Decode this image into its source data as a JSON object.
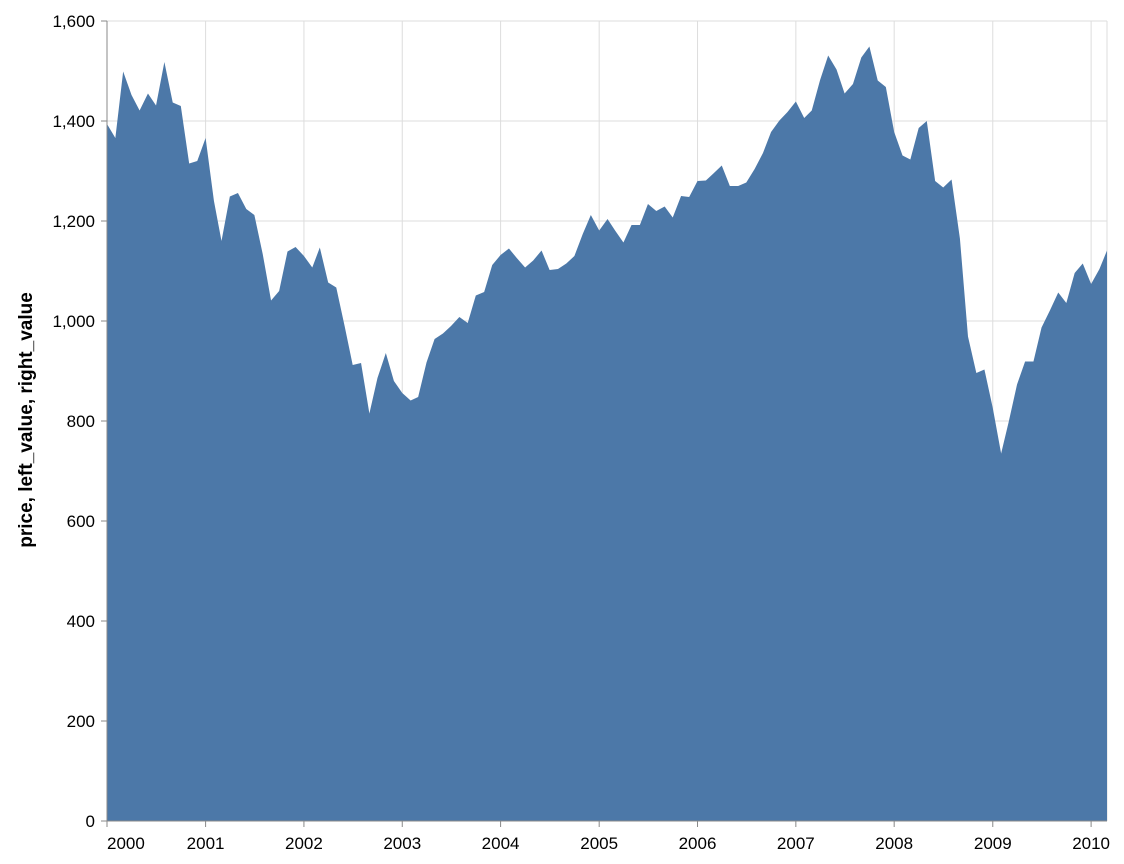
{
  "chart_data": {
    "type": "area",
    "ylabel": "price, left_value, right_value",
    "xlabel": "",
    "ylim": [
      0,
      1600
    ],
    "xlim": [
      "2000-01-01",
      "2010-03-01"
    ],
    "grid": true,
    "y_ticks": [
      "0",
      "200",
      "400",
      "600",
      "800",
      "1,000",
      "1,200",
      "1,400",
      "1,600"
    ],
    "x_ticks": [
      "2000",
      "2001",
      "2002",
      "2003",
      "2004",
      "2005",
      "2006",
      "2007",
      "2008",
      "2009",
      "2010"
    ],
    "colors": {
      "area": "#4c78a8",
      "grid": "#dddddd",
      "axis": "#888888"
    },
    "series": [
      {
        "x": [
          "2000-01",
          "2000-02",
          "2000-03",
          "2000-04",
          "2000-05",
          "2000-06",
          "2000-07",
          "2000-08",
          "2000-09",
          "2000-10",
          "2000-11",
          "2000-12",
          "2001-01",
          "2001-02",
          "2001-03",
          "2001-04",
          "2001-05",
          "2001-06",
          "2001-07",
          "2001-08",
          "2001-09",
          "2001-10",
          "2001-11",
          "2001-12",
          "2002-01",
          "2002-02",
          "2002-03",
          "2002-04",
          "2002-05",
          "2002-06",
          "2002-07",
          "2002-08",
          "2002-09",
          "2002-10",
          "2002-11",
          "2002-12",
          "2003-01",
          "2003-02",
          "2003-03",
          "2003-04",
          "2003-05",
          "2003-06",
          "2003-07",
          "2003-08",
          "2003-09",
          "2003-10",
          "2003-11",
          "2003-12",
          "2004-01",
          "2004-02",
          "2004-03",
          "2004-04",
          "2004-05",
          "2004-06",
          "2004-07",
          "2004-08",
          "2004-09",
          "2004-10",
          "2004-11",
          "2004-12",
          "2005-01",
          "2005-02",
          "2005-03",
          "2005-04",
          "2005-05",
          "2005-06",
          "2005-07",
          "2005-08",
          "2005-09",
          "2005-10",
          "2005-11",
          "2005-12",
          "2006-01",
          "2006-02",
          "2006-03",
          "2006-04",
          "2006-05",
          "2006-06",
          "2006-07",
          "2006-08",
          "2006-09",
          "2006-10",
          "2006-11",
          "2006-12",
          "2007-01",
          "2007-02",
          "2007-03",
          "2007-04",
          "2007-05",
          "2007-06",
          "2007-07",
          "2007-08",
          "2007-09",
          "2007-10",
          "2007-11",
          "2007-12",
          "2008-01",
          "2008-02",
          "2008-03",
          "2008-04",
          "2008-05",
          "2008-06",
          "2008-07",
          "2008-08",
          "2008-09",
          "2008-10",
          "2008-11",
          "2008-12",
          "2009-01",
          "2009-02",
          "2009-03",
          "2009-04",
          "2009-05",
          "2009-06",
          "2009-07",
          "2009-08",
          "2009-09",
          "2009-10",
          "2009-11",
          "2009-12",
          "2010-01",
          "2010-02",
          "2010-03"
        ],
        "y": [
          1394,
          1366,
          1499,
          1452,
          1421,
          1455,
          1431,
          1518,
          1437,
          1430,
          1315,
          1320,
          1366,
          1240,
          1160,
          1249,
          1256,
          1224,
          1212,
          1134,
          1041,
          1060,
          1139,
          1148,
          1130,
          1107,
          1147,
          1077,
          1067,
          990,
          912,
          916,
          815,
          886,
          936,
          880,
          856,
          841,
          848,
          917,
          964,
          975,
          990,
          1008,
          996,
          1051,
          1058,
          1112,
          1132,
          1145,
          1126,
          1107,
          1121,
          1141,
          1102,
          1104,
          1115,
          1130,
          1174,
          1212,
          1181,
          1204,
          1181,
          1157,
          1192,
          1192,
          1234,
          1220,
          1229,
          1207,
          1250,
          1248,
          1280,
          1281,
          1295,
          1311,
          1270,
          1270,
          1277,
          1304,
          1336,
          1378,
          1401,
          1418,
          1439,
          1406,
          1421,
          1482,
          1531,
          1503,
          1455,
          1474,
          1527,
          1549,
          1481,
          1468,
          1378,
          1331,
          1323,
          1386,
          1400,
          1280,
          1267,
          1283,
          1165,
          969,
          896,
          903,
          826,
          735,
          798,
          873,
          919,
          919,
          987,
          1021,
          1057,
          1036,
          1096,
          1115,
          1074,
          1104,
          1141
        ]
      }
    ]
  }
}
